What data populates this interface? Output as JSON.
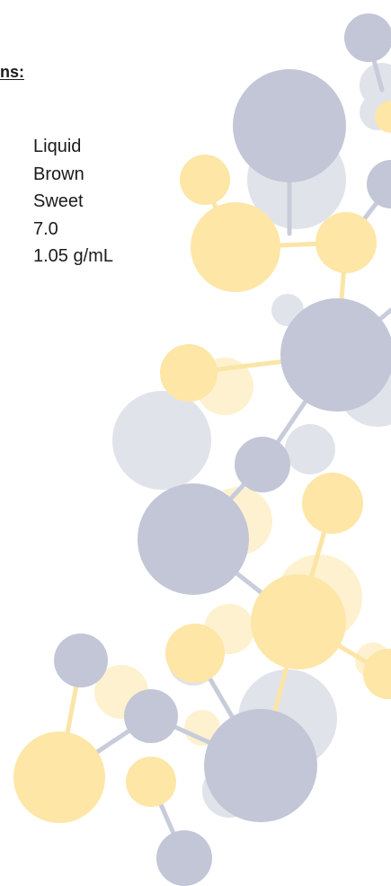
{
  "heading_fragment": "ns:",
  "property_values": [
    "Liquid",
    "Brown",
    "Sweet",
    "7.0",
    "1.05 g/mL"
  ],
  "decoration": {
    "name": "molecule-graphic",
    "colors": {
      "blue": "#c2c6d6",
      "blue_light": "#e1e3ea",
      "yellow": "#fde6a6",
      "yellow_light": "#fdf1cf",
      "bond_blue": "#c8ccda",
      "bond_yellow": "#fbe5a6"
    }
  }
}
